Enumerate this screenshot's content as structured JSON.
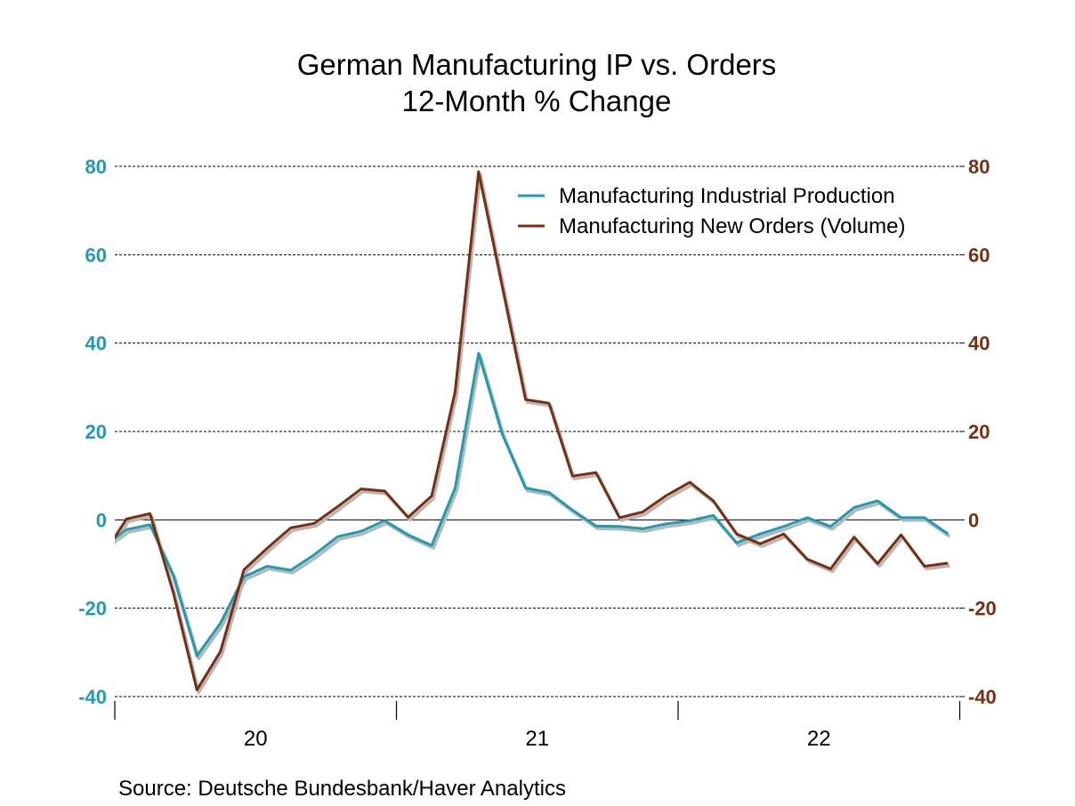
{
  "chart_data": {
    "type": "line",
    "title": "German Manufacturing IP vs. Orders",
    "subtitle": "12-Month % Change",
    "source": "Source:  Deutsche Bundesbank/Haver Analytics",
    "x": [
      "2019-12",
      "2020-01",
      "2020-02",
      "2020-03",
      "2020-04",
      "2020-05",
      "2020-06",
      "2020-07",
      "2020-08",
      "2020-09",
      "2020-10",
      "2020-11",
      "2020-12",
      "2021-01",
      "2021-02",
      "2021-03",
      "2021-04",
      "2021-05",
      "2021-06",
      "2021-07",
      "2021-08",
      "2021-09",
      "2021-10",
      "2021-11",
      "2021-12",
      "2022-01",
      "2022-02",
      "2022-03",
      "2022-04",
      "2022-05",
      "2022-06",
      "2022-07",
      "2022-08",
      "2022-09",
      "2022-10",
      "2022-11",
      "2022-12"
    ],
    "x_tick_labels": [
      "20",
      "21",
      "22"
    ],
    "left_axis": {
      "ylim": [
        -40,
        80
      ],
      "ticks": [
        "-40",
        "-20",
        "0",
        "20",
        "40",
        "60",
        "80"
      ],
      "color": "#1f9bb4"
    },
    "right_axis": {
      "ylim": [
        -40,
        80
      ],
      "ticks": [
        "-40",
        "-20",
        "0",
        "20",
        "40",
        "60",
        "80"
      ],
      "color": "#7a2e0e"
    },
    "grid": true,
    "legend_position": "top-right",
    "series": [
      {
        "name": "Manufacturing Industrial Production",
        "color": "#1f9bb4",
        "axis": "left",
        "values": [
          -6,
          -2.2,
          -1.1,
          -12.7,
          -30.8,
          -23.4,
          -12.9,
          -10.5,
          -11.4,
          -7.9,
          -3.8,
          -2.6,
          -0.2,
          -3.4,
          -5.8,
          7.2,
          37.7,
          19.5,
          7.2,
          6.2,
          2.2,
          -1.4,
          -1.5,
          -2.0,
          -0.9,
          -0.2,
          1.0,
          -5.2,
          -3.2,
          -1.5,
          0.5,
          -1.5,
          2.8,
          4.3,
          0.5,
          0.5,
          -3.2
        ]
      },
      {
        "name": "Manufacturing New Orders (Volume)",
        "color": "#7a2e0e",
        "axis": "right",
        "values": [
          -8,
          0.2,
          1.4,
          -16.6,
          -38.5,
          -29.8,
          -11.3,
          -6.4,
          -1.8,
          -0.8,
          3.0,
          7.0,
          6.5,
          0.6,
          5.4,
          29,
          78.8,
          53,
          27.2,
          26.4,
          9.9,
          10.7,
          0.5,
          1.8,
          5.5,
          8.5,
          4.3,
          -3.2,
          -5.4,
          -3.2,
          -8.9,
          -11.1,
          -3.9,
          -9.9,
          -3.4,
          -10.5,
          -9.8
        ]
      }
    ]
  }
}
